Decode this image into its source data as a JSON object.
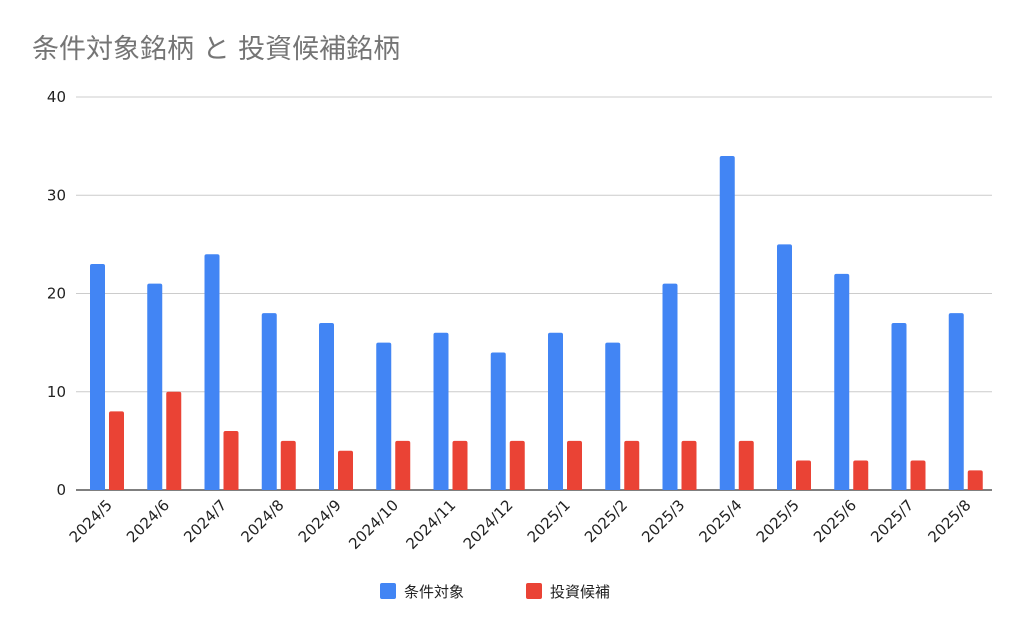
{
  "chart_data": {
    "type": "bar",
    "title": "条件対象銘柄 と 投資候補銘柄",
    "xlabel": "",
    "ylabel": "",
    "ylim": [
      0,
      40
    ],
    "yticks": [
      0,
      10,
      20,
      30,
      40
    ],
    "grid": true,
    "legend_position": "bottom",
    "categories": [
      "2024/5",
      "2024/6",
      "2024/7",
      "2024/8",
      "2024/9",
      "2024/10",
      "2024/11",
      "2024/12",
      "2025/1",
      "2025/2",
      "2025/3",
      "2025/4",
      "2025/5",
      "2025/6",
      "2025/7",
      "2025/8"
    ],
    "series": [
      {
        "name": "条件対象",
        "color": "#4285f4",
        "values": [
          23,
          21,
          24,
          18,
          17,
          15,
          16,
          14,
          16,
          15,
          21,
          34,
          25,
          22,
          17,
          18
        ]
      },
      {
        "name": "投資候補",
        "color": "#ea4335",
        "values": [
          8,
          10,
          6,
          5,
          4,
          5,
          5,
          5,
          5,
          5,
          5,
          5,
          3,
          3,
          3,
          2
        ]
      }
    ]
  }
}
